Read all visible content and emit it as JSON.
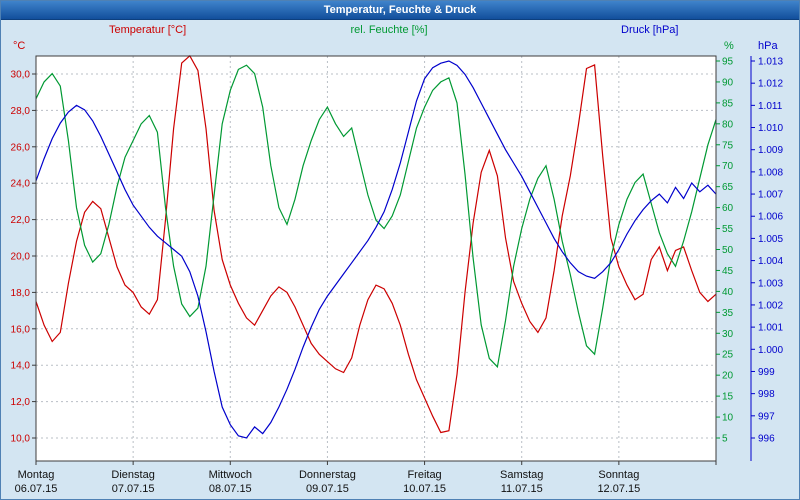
{
  "window": {
    "title": "Temperatur, Feuchte & Druck"
  },
  "chart_data": {
    "type": "line",
    "title": "Temperatur, Feuchte & Druck",
    "grid": true,
    "legend_position": "top",
    "x_axis": {
      "step_hours": 2,
      "days": [
        {
          "name": "Montag",
          "date": "06.07.15"
        },
        {
          "name": "Dienstag",
          "date": "07.07.15"
        },
        {
          "name": "Mittwoch",
          "date": "08.07.15"
        },
        {
          "name": "Donnerstag",
          "date": "09.07.15"
        },
        {
          "name": "Freitag",
          "date": "10.07.15"
        },
        {
          "name": "Samstag",
          "date": "11.07.15"
        },
        {
          "name": "Sonntag",
          "date": "12.07.15"
        }
      ]
    },
    "y_axes": {
      "temperature": {
        "label": "Temperatur [°C]",
        "unit": "°C",
        "color": "#cc0000",
        "min": 10,
        "max": 30,
        "tick_step": 2,
        "tick_labels": [
          "30,0",
          "28,0",
          "26,0",
          "24,0",
          "22,0",
          "20,0",
          "18,0",
          "16,0",
          "14,0",
          "12,0",
          "10,0"
        ]
      },
      "humidity": {
        "label": "rel. Feuchte [%]",
        "unit": "%",
        "color": "#009933",
        "min": 5,
        "max": 95,
        "tick_step": 5,
        "tick_labels": [
          "95",
          "90",
          "85",
          "80",
          "75",
          "70",
          "65",
          "60",
          "55",
          "50",
          "45",
          "40",
          "35",
          "30",
          "25",
          "20",
          "15",
          "10",
          "5"
        ]
      },
      "pressure": {
        "label": "Druck [hPa]",
        "unit": "hPa",
        "color": "#0000cc",
        "min": 996,
        "max": 1013,
        "tick_step": 1,
        "tick_labels": [
          "1.013",
          "1.012",
          "1.011",
          "1.010",
          "1.009",
          "1.008",
          "1.007",
          "1.006",
          "1.005",
          "1.004",
          "1.003",
          "1.002",
          "1.001",
          "1.000",
          "999",
          "998",
          "997",
          "996"
        ]
      }
    },
    "series": [
      {
        "name": "Temperatur",
        "axis": "temperature",
        "color": "#cc0000",
        "values": [
          17.5,
          16.2,
          15.3,
          15.8,
          18.5,
          20.8,
          22.4,
          23.0,
          22.6,
          21.0,
          19.4,
          18.4,
          18.0,
          17.2,
          16.8,
          17.6,
          22.0,
          27.0,
          30.6,
          31.0,
          30.2,
          27.0,
          22.5,
          19.8,
          18.4,
          17.4,
          16.6,
          16.2,
          17.0,
          17.8,
          18.3,
          18.0,
          17.2,
          16.2,
          15.2,
          14.6,
          14.2,
          13.8,
          13.6,
          14.4,
          16.2,
          17.6,
          18.4,
          18.2,
          17.4,
          16.2,
          14.6,
          13.2,
          12.2,
          11.2,
          10.3,
          10.4,
          13.5,
          18.0,
          21.8,
          24.6,
          25.8,
          24.4,
          21.0,
          18.6,
          17.4,
          16.4,
          15.8,
          16.6,
          19.2,
          22.2,
          24.4,
          27.2,
          30.3,
          30.5,
          25.5,
          21.0,
          19.4,
          18.4,
          17.6,
          17.9,
          19.8,
          20.5,
          19.2,
          20.3,
          20.5,
          19.2,
          18.0,
          17.5,
          17.9
        ]
      },
      {
        "name": "rel. Feuchte",
        "axis": "humidity",
        "color": "#009933",
        "values": [
          86,
          90,
          92,
          89,
          76,
          60,
          51,
          47,
          49,
          56,
          65,
          72,
          76,
          80,
          82,
          78,
          60,
          46,
          37,
          34,
          36,
          46,
          63,
          80,
          88,
          93,
          94,
          92,
          84,
          70,
          60,
          56,
          62,
          70,
          76,
          81,
          84,
          80,
          77,
          79,
          71,
          63,
          57,
          55,
          58,
          63,
          71,
          79,
          84,
          88,
          90,
          91,
          85,
          68,
          48,
          32,
          24,
          22,
          33,
          46,
          55,
          62,
          67,
          70,
          62,
          52,
          44,
          35,
          27,
          25,
          36,
          48,
          56,
          62,
          66,
          68,
          61,
          54,
          49,
          46,
          52,
          59,
          67,
          75,
          81
        ]
      },
      {
        "name": "Druck",
        "axis": "pressure",
        "color": "#0000cc",
        "values": [
          1007.6,
          1008.6,
          1009.5,
          1010.2,
          1010.7,
          1011.0,
          1010.8,
          1010.3,
          1009.6,
          1008.8,
          1008.0,
          1007.2,
          1006.5,
          1006.0,
          1005.5,
          1005.1,
          1004.8,
          1004.5,
          1004.2,
          1003.5,
          1002.4,
          1000.8,
          999.0,
          997.4,
          996.6,
          996.1,
          996.0,
          996.5,
          996.2,
          996.7,
          997.4,
          998.2,
          999.1,
          1000.1,
          1001.0,
          1001.8,
          1002.4,
          1002.9,
          1003.4,
          1003.9,
          1004.4,
          1004.9,
          1005.5,
          1006.2,
          1007.2,
          1008.4,
          1009.8,
          1011.2,
          1012.2,
          1012.7,
          1012.9,
          1013.0,
          1012.8,
          1012.4,
          1011.8,
          1011.1,
          1010.4,
          1009.7,
          1009.0,
          1008.4,
          1007.8,
          1007.1,
          1006.4,
          1005.7,
          1005.0,
          1004.4,
          1003.9,
          1003.5,
          1003.3,
          1003.2,
          1003.5,
          1003.9,
          1004.5,
          1005.2,
          1005.8,
          1006.3,
          1006.7,
          1007.0,
          1006.6,
          1007.3,
          1006.8,
          1007.5,
          1007.1,
          1007.4,
          1007.0
        ]
      }
    ]
  }
}
